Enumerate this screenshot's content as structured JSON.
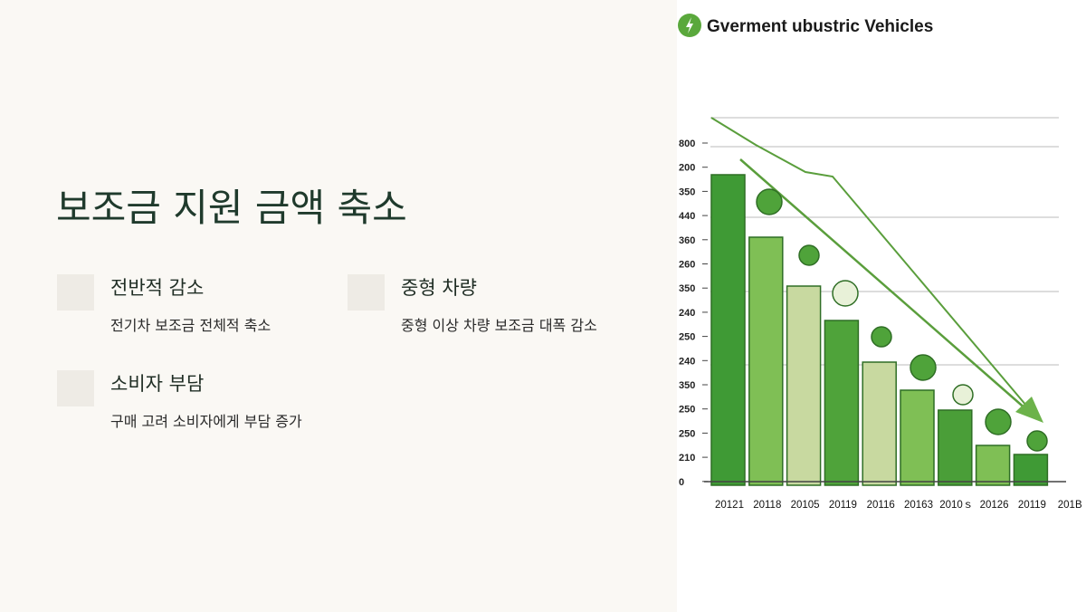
{
  "slide": {
    "title": "보조금 지원 금액 축소",
    "items": [
      {
        "heading": "전반적 감소",
        "text": "전기차 보조금 전체적 축소"
      },
      {
        "heading": "중형 차량",
        "text": "중형 이상 차량 보조금 대폭 감소"
      },
      {
        "heading": "소비자 부담",
        "text": "구매 고려 소비자에게 부담 증가"
      }
    ]
  },
  "figure": {
    "title": "Gverment ubustric Vehicles",
    "y_labels": [
      "800",
      "200",
      "350",
      "440",
      "360",
      "260",
      "350",
      "240",
      "250",
      "240",
      "350",
      "250",
      "250",
      "210",
      "0"
    ],
    "x_labels": [
      "20121",
      "20118",
      "20105",
      "20119",
      "20116",
      "20163",
      "2010ｓ",
      "20126",
      "20119",
      "201B"
    ]
  }
}
